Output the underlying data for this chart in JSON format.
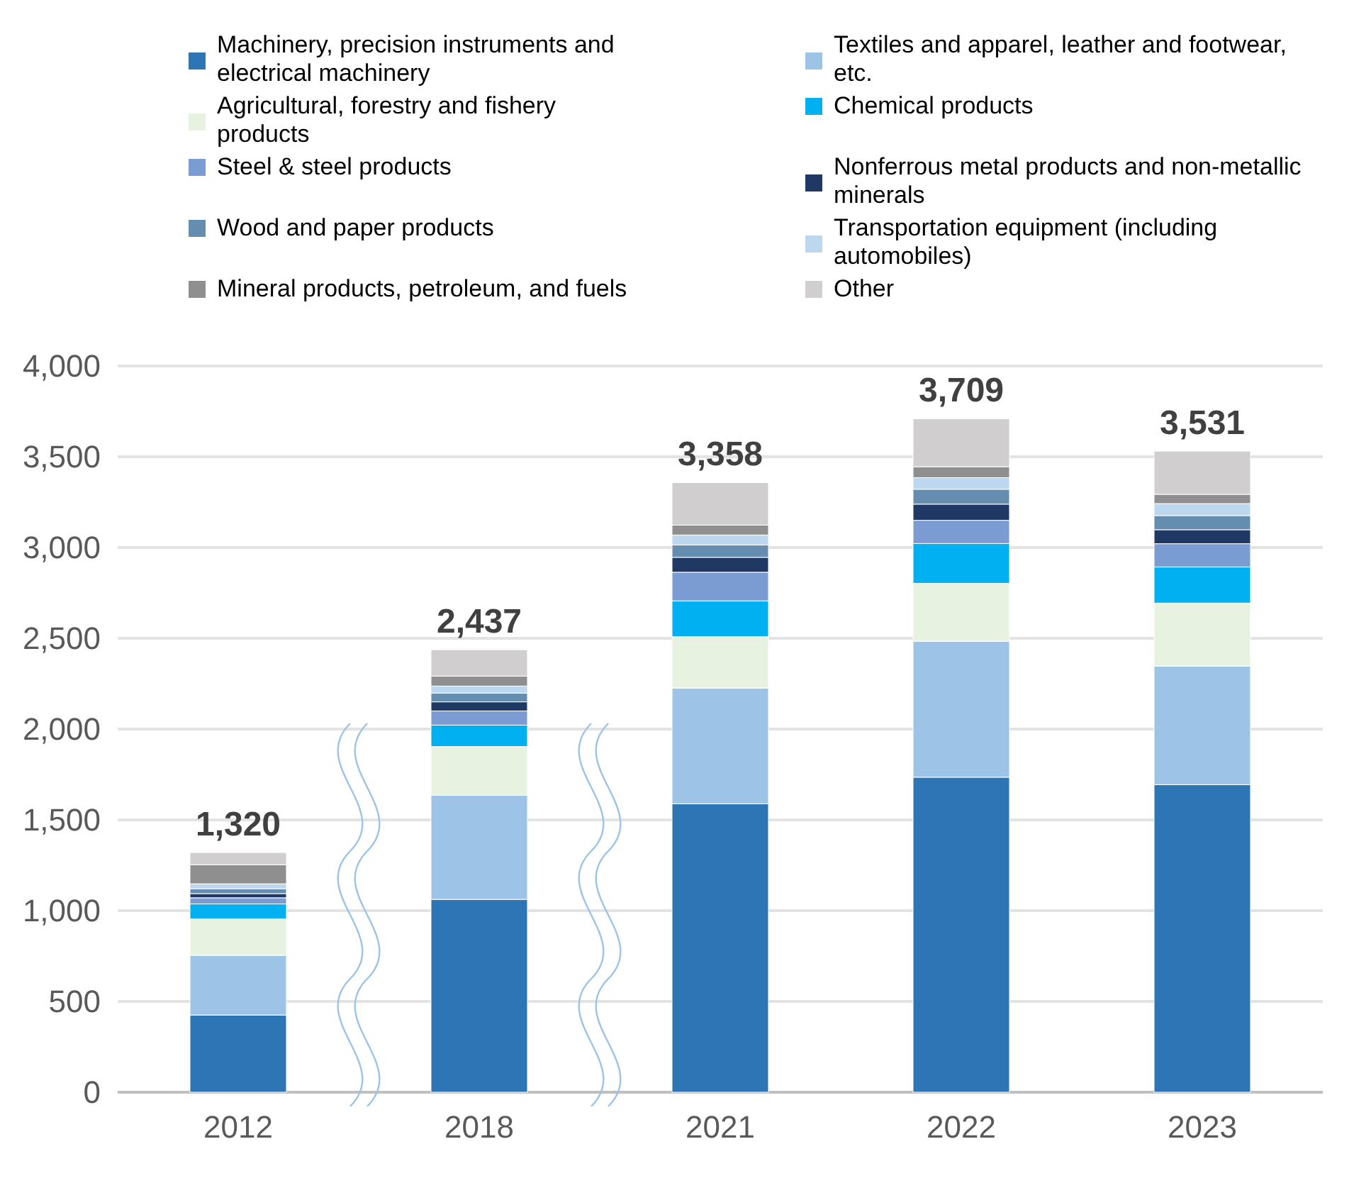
{
  "chart_data": {
    "type": "bar",
    "stacked": true,
    "categories": [
      "2012",
      "2018",
      "2021",
      "2022",
      "2023"
    ],
    "series": [
      {
        "name": "Machinery, precision instruments and electrical machinery",
        "color": "#2e75b6",
        "values": [
          425,
          1062,
          1589,
          1735,
          1694
        ]
      },
      {
        "name": "Textiles and apparel, leather and footwear, etc.",
        "color": "#9dc3e6",
        "values": [
          329,
          573,
          637,
          749,
          653
        ]
      },
      {
        "name": "Agricultural, forestry and fishery products",
        "color": "#e8f2e1",
        "values": [
          201,
          269,
          283,
          319,
          347
        ]
      },
      {
        "name": "Chemical products",
        "color": "#00b0f0",
        "values": [
          82,
          118,
          197,
          219,
          199
        ]
      },
      {
        "name": "Steel & steel products",
        "color": "#7b9bd3",
        "values": [
          34,
          78,
          158,
          128,
          128
        ]
      },
      {
        "name": "Nonferrous metal products and non-metallic minerals",
        "color": "#203864",
        "values": [
          23,
          50,
          82,
          89,
          77
        ]
      },
      {
        "name": "Wood and paper products",
        "color": "#658db0",
        "values": [
          27,
          48,
          68,
          82,
          78
        ]
      },
      {
        "name": "Transportation equipment (including automobiles)",
        "color": "#bdd7ee",
        "values": [
          27,
          39,
          55,
          64,
          66
        ]
      },
      {
        "name": "Mineral products, petroleum, and fuels",
        "color": "#8f8f8f",
        "values": [
          105,
          55,
          55,
          60,
          51
        ]
      },
      {
        "name": "Other",
        "color": "#d0cece",
        "values": [
          67,
          145,
          234,
          264,
          238
        ]
      }
    ],
    "totals": [
      "1,320",
      "2,437",
      "3,358",
      "3,709",
      "3,531"
    ],
    "ylim": [
      0,
      4000
    ],
    "yticks": [
      {
        "value": 0,
        "label": "0"
      },
      {
        "value": 500,
        "label": "500"
      },
      {
        "value": 1000,
        "label": "1,000"
      },
      {
        "value": 1500,
        "label": "1,500"
      },
      {
        "value": 2000,
        "label": "2,000"
      },
      {
        "value": 2500,
        "label": "2,500"
      },
      {
        "value": 3000,
        "label": "3,000"
      },
      {
        "value": 3500,
        "label": "3,500"
      },
      {
        "value": 4000,
        "label": "4,000"
      }
    ],
    "grid": "y",
    "legend": "top"
  }
}
